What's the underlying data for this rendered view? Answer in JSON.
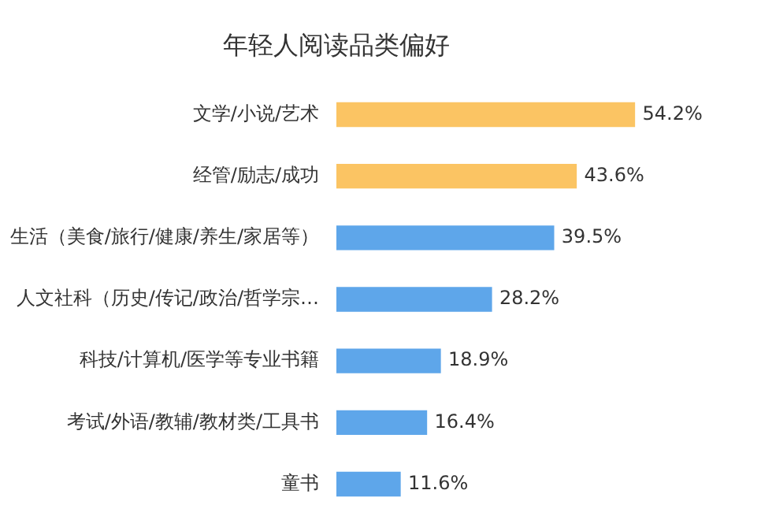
{
  "chart_data": {
    "type": "bar",
    "orientation": "horizontal",
    "title": "年轻人阅读品类偏好",
    "categories": [
      "文学/小说/艺术",
      "经管/励志/成功",
      "生活（美食/旅行/健康/养生/家居等）",
      "人文社科（历史/传记/政治/哲学宗…",
      "科技/计算机/医学等专业书籍",
      "考试/外语/教辅/教材类/工具书",
      "童书"
    ],
    "values": [
      54.2,
      43.6,
      39.5,
      28.2,
      18.9,
      16.4,
      11.6
    ],
    "colors": [
      "#fbc463",
      "#fbc463",
      "#5ea6ea",
      "#5ea6ea",
      "#5ea6ea",
      "#5ea6ea",
      "#5ea6ea"
    ],
    "value_labels": [
      "54.2%",
      "43.6%",
      "39.5%",
      "28.2%",
      "18.9%",
      "16.4%",
      "11.6%"
    ],
    "grid": false,
    "legend": false
  }
}
